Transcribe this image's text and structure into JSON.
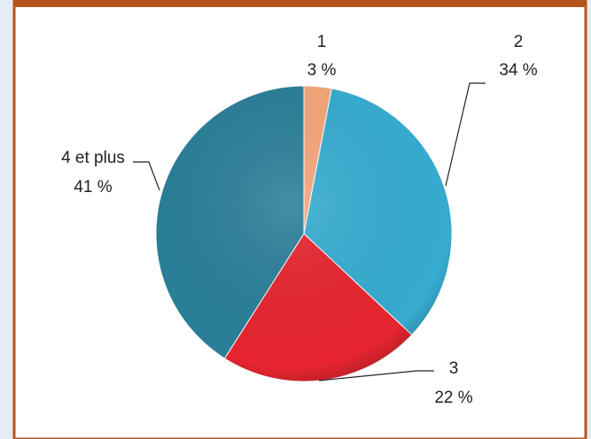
{
  "chart_data": {
    "type": "pie",
    "categories": [
      "1",
      "2",
      "3",
      "4 et plus"
    ],
    "values": [
      3,
      34,
      22,
      41
    ],
    "value_labels": [
      "3 %",
      "34 %",
      "22 %",
      "41 %"
    ],
    "colors": [
      "#f4a57a",
      "#36acd0",
      "#e6252f",
      "#2a7f98"
    ]
  }
}
